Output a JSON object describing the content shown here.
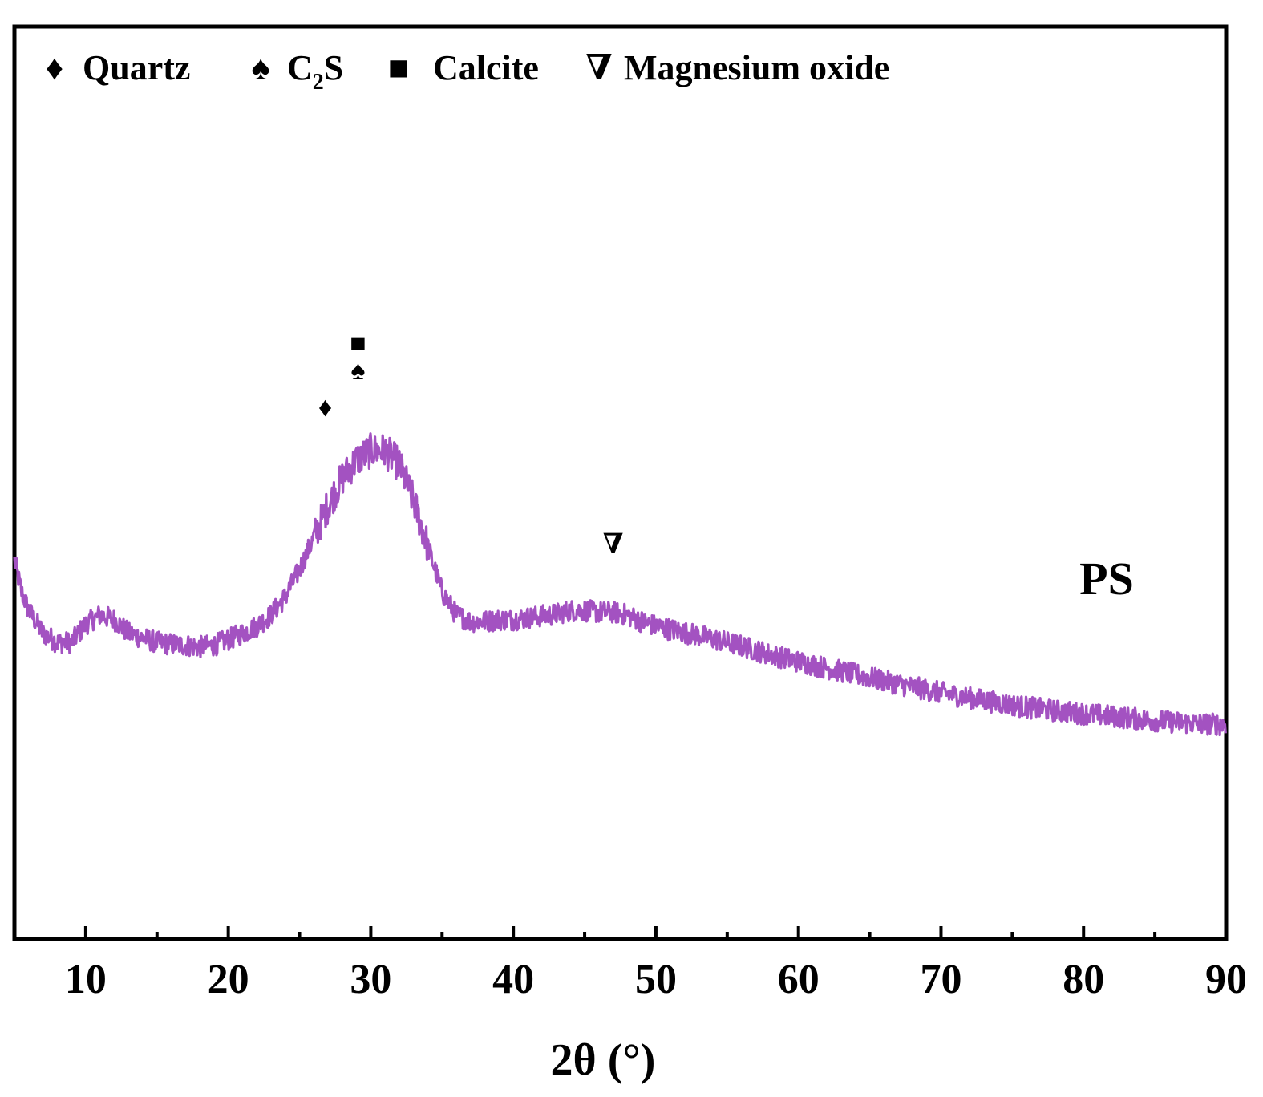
{
  "chart_data": {
    "type": "line",
    "xlabel": "2θ (°)",
    "ylabel": "",
    "xlim": [
      5,
      90
    ],
    "ylim": [
      0,
      100
    ],
    "x_ticks": [
      10,
      20,
      30,
      40,
      50,
      60,
      70,
      80,
      90
    ],
    "x_minor_ticks": [
      15,
      25,
      35,
      45,
      55,
      65,
      75,
      85
    ],
    "y_ticks_shown": false,
    "grid": false,
    "legend_position": "top-left",
    "legend": [
      {
        "symbol": "diamond",
        "glyph": "♦",
        "label": "Quartz"
      },
      {
        "symbol": "spade",
        "glyph": "♠",
        "label_main": "C",
        "label_sub": "2",
        "label_tail": "S"
      },
      {
        "symbol": "square",
        "glyph": "■",
        "label": "Calcite"
      },
      {
        "symbol": "open-down-triangle",
        "glyph": "∇",
        "label": "Magnesium oxide"
      }
    ],
    "series": [
      {
        "name": "PS",
        "color": "#a352c1",
        "noise_amplitude": 1.2,
        "x": [
          5,
          5.5,
          6,
          7,
          8,
          9,
          10,
          11,
          12,
          13,
          14,
          15,
          16,
          17,
          18,
          19,
          20,
          21,
          22,
          23,
          24,
          25,
          26,
          27,
          28,
          29,
          30,
          31,
          32,
          33,
          34,
          35,
          36,
          37,
          38,
          39,
          40,
          41,
          42,
          43,
          44,
          45,
          46,
          47,
          48,
          49,
          50,
          52,
          54,
          56,
          58,
          60,
          62,
          64,
          66,
          68,
          70,
          72,
          74,
          76,
          78,
          80,
          82,
          84,
          86,
          88,
          90
        ],
        "y": [
          41.5,
          38,
          36,
          33.5,
          32.5,
          32.5,
          34.5,
          35.5,
          35,
          33.5,
          33,
          32.5,
          32.3,
          32.2,
          32,
          32.2,
          32.8,
          33.5,
          34.3,
          35.5,
          37.5,
          40.5,
          44,
          47.5,
          50.5,
          52.5,
          53.5,
          53.5,
          52,
          48,
          43,
          38,
          35.5,
          34.8,
          34.8,
          35,
          35,
          35.2,
          35.4,
          35.6,
          36,
          36,
          35.8,
          35.8,
          35.5,
          34.8,
          34.3,
          33.6,
          32.9,
          32.1,
          31.2,
          30.4,
          29.7,
          29.0,
          28.3,
          27.6,
          27.0,
          26.4,
          25.9,
          25.4,
          25.0,
          24.7,
          24.4,
          24.1,
          23.8,
          23.6,
          23.5
        ]
      }
    ],
    "sample_label": "PS",
    "phase_markers": [
      {
        "symbol": "diamond",
        "glyph": "♦",
        "x": 26.8,
        "y": 58
      },
      {
        "symbol": "spade",
        "glyph": "♠",
        "x": 29.1,
        "y": 62
      },
      {
        "symbol": "square",
        "glyph": "■",
        "x": 29.1,
        "y": 65
      },
      {
        "symbol": "open-down-triangle",
        "glyph": "∇",
        "x": 47.0,
        "y": 43
      }
    ]
  }
}
